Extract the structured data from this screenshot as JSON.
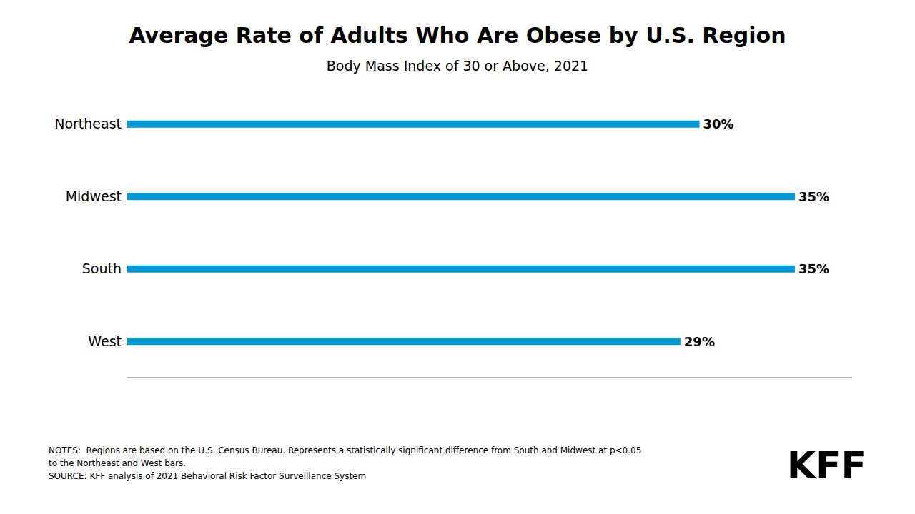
{
  "chart_data": {
    "type": "bar",
    "title": "Average Rate of Adults Who Are Obese by U.S. Region",
    "subtitle": "Body Mass Index of 30 or Above, 2021",
    "categories": [
      "West",
      "South",
      "Midwest",
      "Northeast"
    ],
    "values": [
      29,
      35,
      35,
      30
    ],
    "value_labels": [
      "29%",
      "35%",
      "35%",
      "30%"
    ],
    "color": "#0099d8",
    "orientation": "horizontal",
    "data_labels": true,
    "tick_labels": "y",
    "xlim": [
      0,
      38
    ],
    "annotations": [
      "NOTES:  Regions are based on the U.S. Census Bureau. Represents a statistically significant difference from South and Midwest at p<0.05",
      "to the Northeast and West bars.",
      "SOURCE: KFF analysis of 2021 Behavioral Risk Factor Surveillance System",
      "KFF"
    ]
  }
}
